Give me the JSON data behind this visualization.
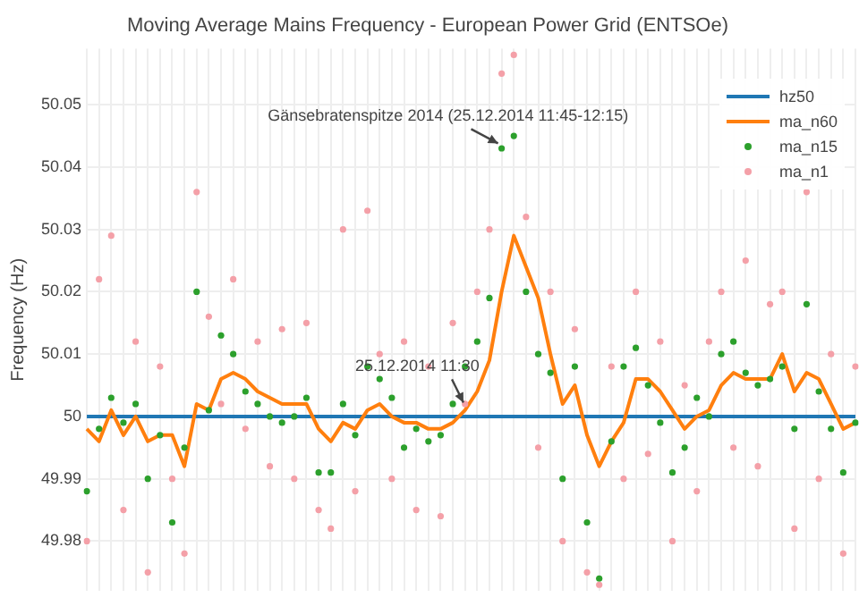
{
  "chart_data": {
    "type": "line",
    "title": "Moving Average Mains Frequency - European Power Grid (ENTSOe)",
    "ylabel": "Frequency (Hz)",
    "categories": [
      null,
      null,
      null,
      null,
      null,
      null,
      null,
      null,
      null,
      null,
      null,
      null,
      null,
      null,
      null,
      null,
      null,
      null,
      null,
      null,
      null,
      null,
      null,
      null,
      null,
      null,
      null,
      null,
      null,
      null,
      null,
      null,
      null,
      null,
      null,
      null,
      null,
      null,
      null,
      null,
      null,
      null,
      null,
      null,
      null,
      null,
      null,
      null,
      null,
      null,
      null,
      null,
      null,
      null,
      null,
      null,
      null,
      null,
      null,
      null,
      null,
      null,
      null,
      null
    ],
    "series": [
      {
        "name": "hz50",
        "type": "line",
        "marker": "none",
        "color": "#1f77b4",
        "values": [
          50,
          50,
          50,
          50,
          50,
          50,
          50,
          50,
          50,
          50,
          50,
          50,
          50,
          50,
          50,
          50,
          50,
          50,
          50,
          50,
          50,
          50,
          50,
          50,
          50,
          50,
          50,
          50,
          50,
          50,
          50,
          50,
          50,
          50,
          50,
          50,
          50,
          50,
          50,
          50,
          50,
          50,
          50,
          50,
          50,
          50,
          50,
          50,
          50,
          50,
          50,
          50,
          50,
          50,
          50,
          50,
          50,
          50,
          50,
          50,
          50,
          50,
          50,
          50
        ]
      },
      {
        "name": "ma_n60",
        "type": "line",
        "marker": "none",
        "color": "#ff7f0e",
        "values": [
          49.998,
          49.996,
          50.001,
          49.997,
          50.0,
          49.996,
          49.997,
          49.997,
          49.992,
          50.002,
          50.001,
          50.006,
          50.007,
          50.006,
          50.004,
          50.003,
          50.002,
          50.002,
          50.002,
          49.998,
          49.996,
          49.999,
          49.998,
          50.001,
          50.002,
          50.0,
          49.999,
          49.999,
          49.998,
          49.998,
          49.999,
          50.001,
          50.004,
          50.009,
          50.02,
          50.029,
          50.024,
          50.019,
          50.01,
          50.002,
          50.005,
          49.997,
          49.992,
          49.996,
          49.999,
          50.006,
          50.006,
          50.004,
          50.001,
          49.998,
          50.0,
          50.001,
          50.005,
          50.007,
          50.006,
          50.006,
          50.006,
          50.01,
          50.004,
          50.007,
          50.006,
          50.002,
          49.998,
          49.999
        ]
      },
      {
        "name": "ma_n15",
        "type": "scatter",
        "marker": "circle",
        "color": "#2ca02c",
        "values": [
          49.988,
          49.998,
          50.003,
          49.999,
          50.002,
          49.99,
          49.997,
          49.983,
          49.995,
          50.02,
          50.001,
          50.013,
          50.01,
          50.004,
          50.002,
          50.0,
          49.999,
          50.0,
          50.003,
          49.991,
          49.991,
          50.002,
          49.997,
          50.008,
          50.006,
          50.003,
          49.995,
          49.998,
          49.996,
          49.997,
          50.002,
          50.008,
          50.012,
          50.019,
          50.043,
          50.045,
          50.02,
          50.01,
          50.007,
          49.99,
          50.008,
          49.983,
          49.974,
          49.996,
          50.008,
          50.011,
          50.005,
          49.999,
          49.991,
          49.995,
          50.003,
          50.0,
          50.01,
          50.012,
          50.007,
          50.005,
          50.006,
          50.008,
          49.998,
          50.018,
          50.004,
          49.998,
          49.991,
          49.999
        ]
      },
      {
        "name": "ma_n1",
        "type": "scatter",
        "marker": "circle",
        "color": "#f4a0a8",
        "values": [
          49.98,
          50.022,
          50.029,
          49.985,
          50.012,
          49.975,
          50.008,
          49.99,
          49.978,
          50.036,
          50.016,
          50.002,
          50.022,
          49.998,
          50.012,
          49.992,
          50.014,
          49.99,
          50.015,
          49.985,
          49.982,
          50.03,
          49.988,
          50.033,
          50.01,
          49.99,
          50.012,
          49.985,
          50.008,
          49.984,
          50.015,
          50.002,
          50.02,
          50.03,
          50.055,
          50.058,
          50.032,
          49.995,
          50.02,
          49.98,
          50.014,
          49.975,
          49.973,
          50.008,
          49.99,
          50.02,
          49.994,
          50.012,
          49.98,
          50.005,
          49.988,
          50.012,
          50.02,
          49.995,
          50.025,
          49.992,
          50.018,
          50.02,
          49.982,
          50.036,
          49.99,
          50.01,
          49.978,
          50.008
        ]
      }
    ],
    "ylim": [
      49.972,
      50.059
    ],
    "yticks": [
      49.98,
      49.99,
      50,
      50.01,
      50.02,
      50.03,
      50.04,
      50.05
    ],
    "grid": true,
    "legend": "top right",
    "line_style": "solid",
    "tick_labels": "y",
    "annotations": [
      "Gänsebratenspitze 2014 (25.12.2014 11:45-12:15)",
      "25.12.2014 11:30"
    ]
  }
}
